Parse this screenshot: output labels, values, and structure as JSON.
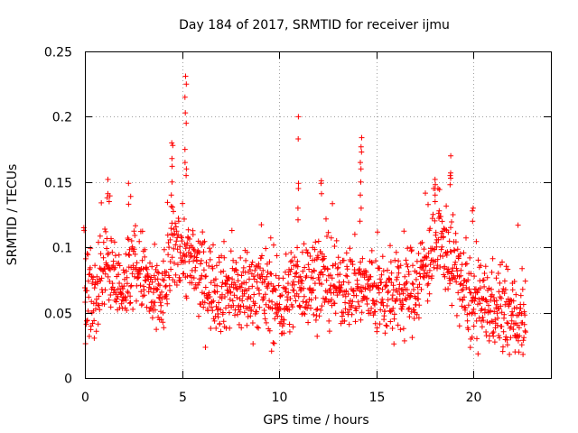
{
  "chart_data": {
    "type": "scatter",
    "title": "Day 184 of 2017, SRMTID for receiver ijmu",
    "xlabel": "GPS time / hours",
    "ylabel": "SRMTID / TECUs",
    "xlim": [
      0,
      24
    ],
    "ylim": [
      0,
      0.25
    ],
    "xticks": [
      0,
      5,
      10,
      15,
      20
    ],
    "yticks": [
      0,
      0.05,
      0.1,
      0.15,
      0.2,
      0.25
    ],
    "xtick_labels": [
      "0",
      "5",
      "10",
      "15",
      "20"
    ],
    "ytick_labels": [
      "0",
      "0.05",
      "0.1",
      "0.15",
      "0.2",
      "0.25"
    ],
    "grid": true,
    "marker": "+",
    "color": "#ff0000",
    "n_points": 1500,
    "trend_profile": [
      [
        0.0,
        0.06
      ],
      [
        0.5,
        0.06
      ],
      [
        1.0,
        0.085
      ],
      [
        1.3,
        0.085
      ],
      [
        1.8,
        0.07
      ],
      [
        2.5,
        0.085
      ],
      [
        3.0,
        0.08
      ],
      [
        3.5,
        0.06
      ],
      [
        4.0,
        0.06
      ],
      [
        4.5,
        0.1
      ],
      [
        5.0,
        0.1
      ],
      [
        5.5,
        0.085
      ],
      [
        6.5,
        0.07
      ],
      [
        8.0,
        0.065
      ],
      [
        9.0,
        0.07
      ],
      [
        10.0,
        0.055
      ],
      [
        11.0,
        0.075
      ],
      [
        12.0,
        0.075
      ],
      [
        13.0,
        0.07
      ],
      [
        14.0,
        0.07
      ],
      [
        15.0,
        0.065
      ],
      [
        16.0,
        0.06
      ],
      [
        17.0,
        0.07
      ],
      [
        18.0,
        0.1
      ],
      [
        18.6,
        0.1
      ],
      [
        19.2,
        0.08
      ],
      [
        19.8,
        0.055
      ],
      [
        21.0,
        0.055
      ],
      [
        22.0,
        0.045
      ],
      [
        22.7,
        0.05
      ]
    ],
    "spikes": [
      {
        "x": 0.0,
        "values": [
          0.113,
          0.115
        ]
      },
      {
        "x": 1.2,
        "values": [
          0.152,
          0.141,
          0.138,
          0.135
        ]
      },
      {
        "x": 2.3,
        "values": [
          0.149,
          0.139,
          0.133
        ]
      },
      {
        "x": 4.5,
        "values": [
          0.18,
          0.178,
          0.168,
          0.162,
          0.15,
          0.14
        ]
      },
      {
        "x": 5.2,
        "values": [
          0.231,
          0.225,
          0.215,
          0.203,
          0.195,
          0.175,
          0.165,
          0.16,
          0.155
        ]
      },
      {
        "x": 11.0,
        "values": [
          0.2,
          0.183,
          0.149,
          0.145,
          0.13
        ]
      },
      {
        "x": 12.2,
        "values": [
          0.151,
          0.149,
          0.141
        ]
      },
      {
        "x": 14.2,
        "values": [
          0.184,
          0.177,
          0.173,
          0.165,
          0.16,
          0.15,
          0.14,
          0.13,
          0.12
        ]
      },
      {
        "x": 18.8,
        "values": [
          0.17,
          0.157,
          0.155,
          0.153,
          0.148
        ]
      },
      {
        "x": 18.0,
        "values": [
          0.152,
          0.148,
          0.145,
          0.14
        ]
      },
      {
        "x": 20.0,
        "values": [
          0.13,
          0.128,
          0.12
        ]
      }
    ]
  }
}
